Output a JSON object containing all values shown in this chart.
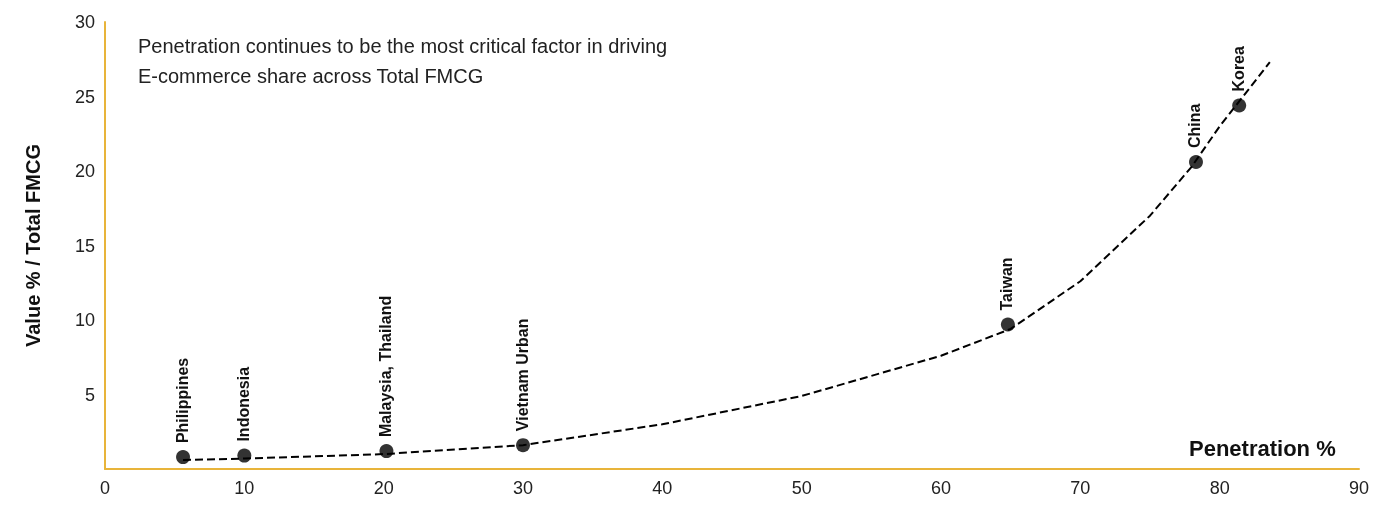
{
  "chart_data": {
    "type": "scatter",
    "title": "Penetration continues to be the most critical factor in driving E-commerce share across Total FMCG",
    "xlabel": "Penetration %",
    "ylabel": "Value % / Total FMCG",
    "x": [
      5.6,
      10,
      20.2,
      30,
      64.8,
      78.3,
      81.4
    ],
    "series": [
      {
        "color": "#000000",
        "marker": "circle",
        "values": [
          0.8,
          0.9,
          1.2,
          1.6,
          9.7,
          20.6,
          24.4
        ]
      },
      {
        "type": "line",
        "color": "#000000",
        "line_style": "dashed",
        "marker": "none",
        "x": [
          5.6,
          10,
          20,
          30,
          40,
          50,
          60,
          65,
          70,
          75,
          78,
          80,
          83.6
        ],
        "values": [
          0.6,
          0.7,
          1.0,
          1.6,
          3.0,
          4.9,
          7.6,
          9.4,
          12.6,
          17.0,
          20.3,
          23.0,
          27.3
        ]
      }
    ],
    "annotations": [
      {
        "text": "Philippines",
        "x": 5.6,
        "y": 0.8
      },
      {
        "text": "Indonesia",
        "x": 10,
        "y": 0.9
      },
      {
        "text": "Malaysia, Thailand",
        "x": 20.2,
        "y": 1.2
      },
      {
        "text": "Vietnam Urban",
        "x": 30,
        "y": 1.6
      },
      {
        "text": "Taiwan",
        "x": 64.8,
        "y": 9.7
      },
      {
        "text": "China",
        "x": 78.3,
        "y": 20.6
      },
      {
        "text": "Korea",
        "x": 81.4,
        "y": 24.4
      }
    ],
    "xlim": [
      0,
      90
    ],
    "xticks": [
      0,
      10,
      20,
      30,
      40,
      50,
      60,
      70,
      80,
      90
    ],
    "ylim": [
      0,
      30
    ],
    "yticks": [
      5,
      10,
      15,
      20,
      25,
      30
    ],
    "grid": false
  }
}
